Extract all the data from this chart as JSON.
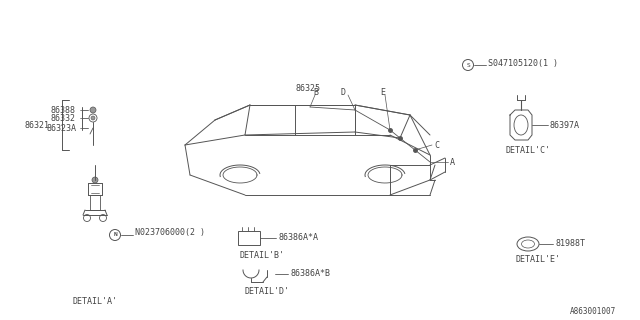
{
  "bg_color": "#ffffff",
  "line_color": "#555555",
  "text_color": "#444444",
  "diagram_id": "A863001007",
  "parts": {
    "detail_a_labels": [
      "86388",
      "86332",
      "86323A",
      "86321"
    ],
    "detail_a_note": "N023706000(2 )",
    "detail_b_label": "86386A*A",
    "detail_b_title": "DETAIL'B'",
    "detail_c_label": "86397A",
    "detail_c_title": "DETAIL'C'",
    "detail_d_label": "86386A*B",
    "detail_d_title": "DETAIL'D'",
    "detail_e_label": "81988T",
    "detail_e_title": "DETAIL'E'",
    "detail_a_title": "DETAIL'A'",
    "car_label": "86325",
    "screw_label": "S047105120(1 )",
    "callouts": [
      "A",
      "B",
      "C",
      "D",
      "E"
    ]
  },
  "font_size": 6.0,
  "font_family": "monospace"
}
